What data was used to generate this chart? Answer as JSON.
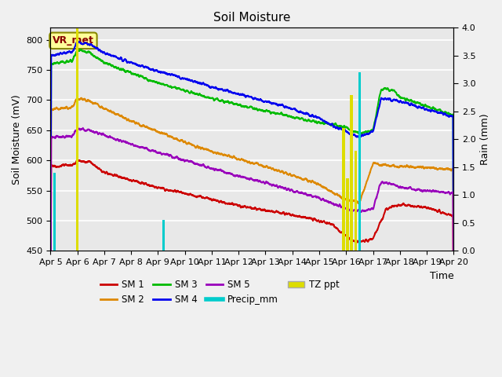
{
  "title": "Soil Moisture",
  "xlabel": "Time",
  "ylabel_left": "Soil Moisture (mV)",
  "ylabel_right": "Rain (mm)",
  "xlim": [
    0,
    15
  ],
  "ylim_left": [
    450,
    820
  ],
  "ylim_right": [
    0,
    4.0
  ],
  "background_color": "#f0f0f0",
  "plot_bg_color": "#e8e8e8",
  "grid_color": "#ffffff",
  "x_labels": [
    "Apr 5",
    "Apr 6",
    "Apr 7",
    "Apr 8",
    "Apr 9",
    "Apr 10",
    "Apr 11",
    "Apr 12",
    "Apr 13",
    "Apr 14",
    "Apr 15",
    "Apr 16",
    "Apr 17",
    "Apr 18",
    "Apr 19",
    "Apr 20"
  ],
  "sm1_color": "#cc0000",
  "sm2_color": "#dd8800",
  "sm3_color": "#00bb00",
  "sm4_color": "#0000ee",
  "sm5_color": "#9900bb",
  "precip_color": "#00cccc",
  "tz_color": "#dddd00",
  "vr_met_box_color": "#ffff99",
  "vr_met_text_color": "#880000",
  "vr_met_border_color": "#888800",
  "yticks": [
    450,
    500,
    550,
    600,
    650,
    700,
    750,
    800
  ],
  "yticks_right": [
    0.0,
    0.5,
    1.0,
    1.5,
    2.0,
    2.5,
    3.0,
    3.5,
    4.0
  ]
}
